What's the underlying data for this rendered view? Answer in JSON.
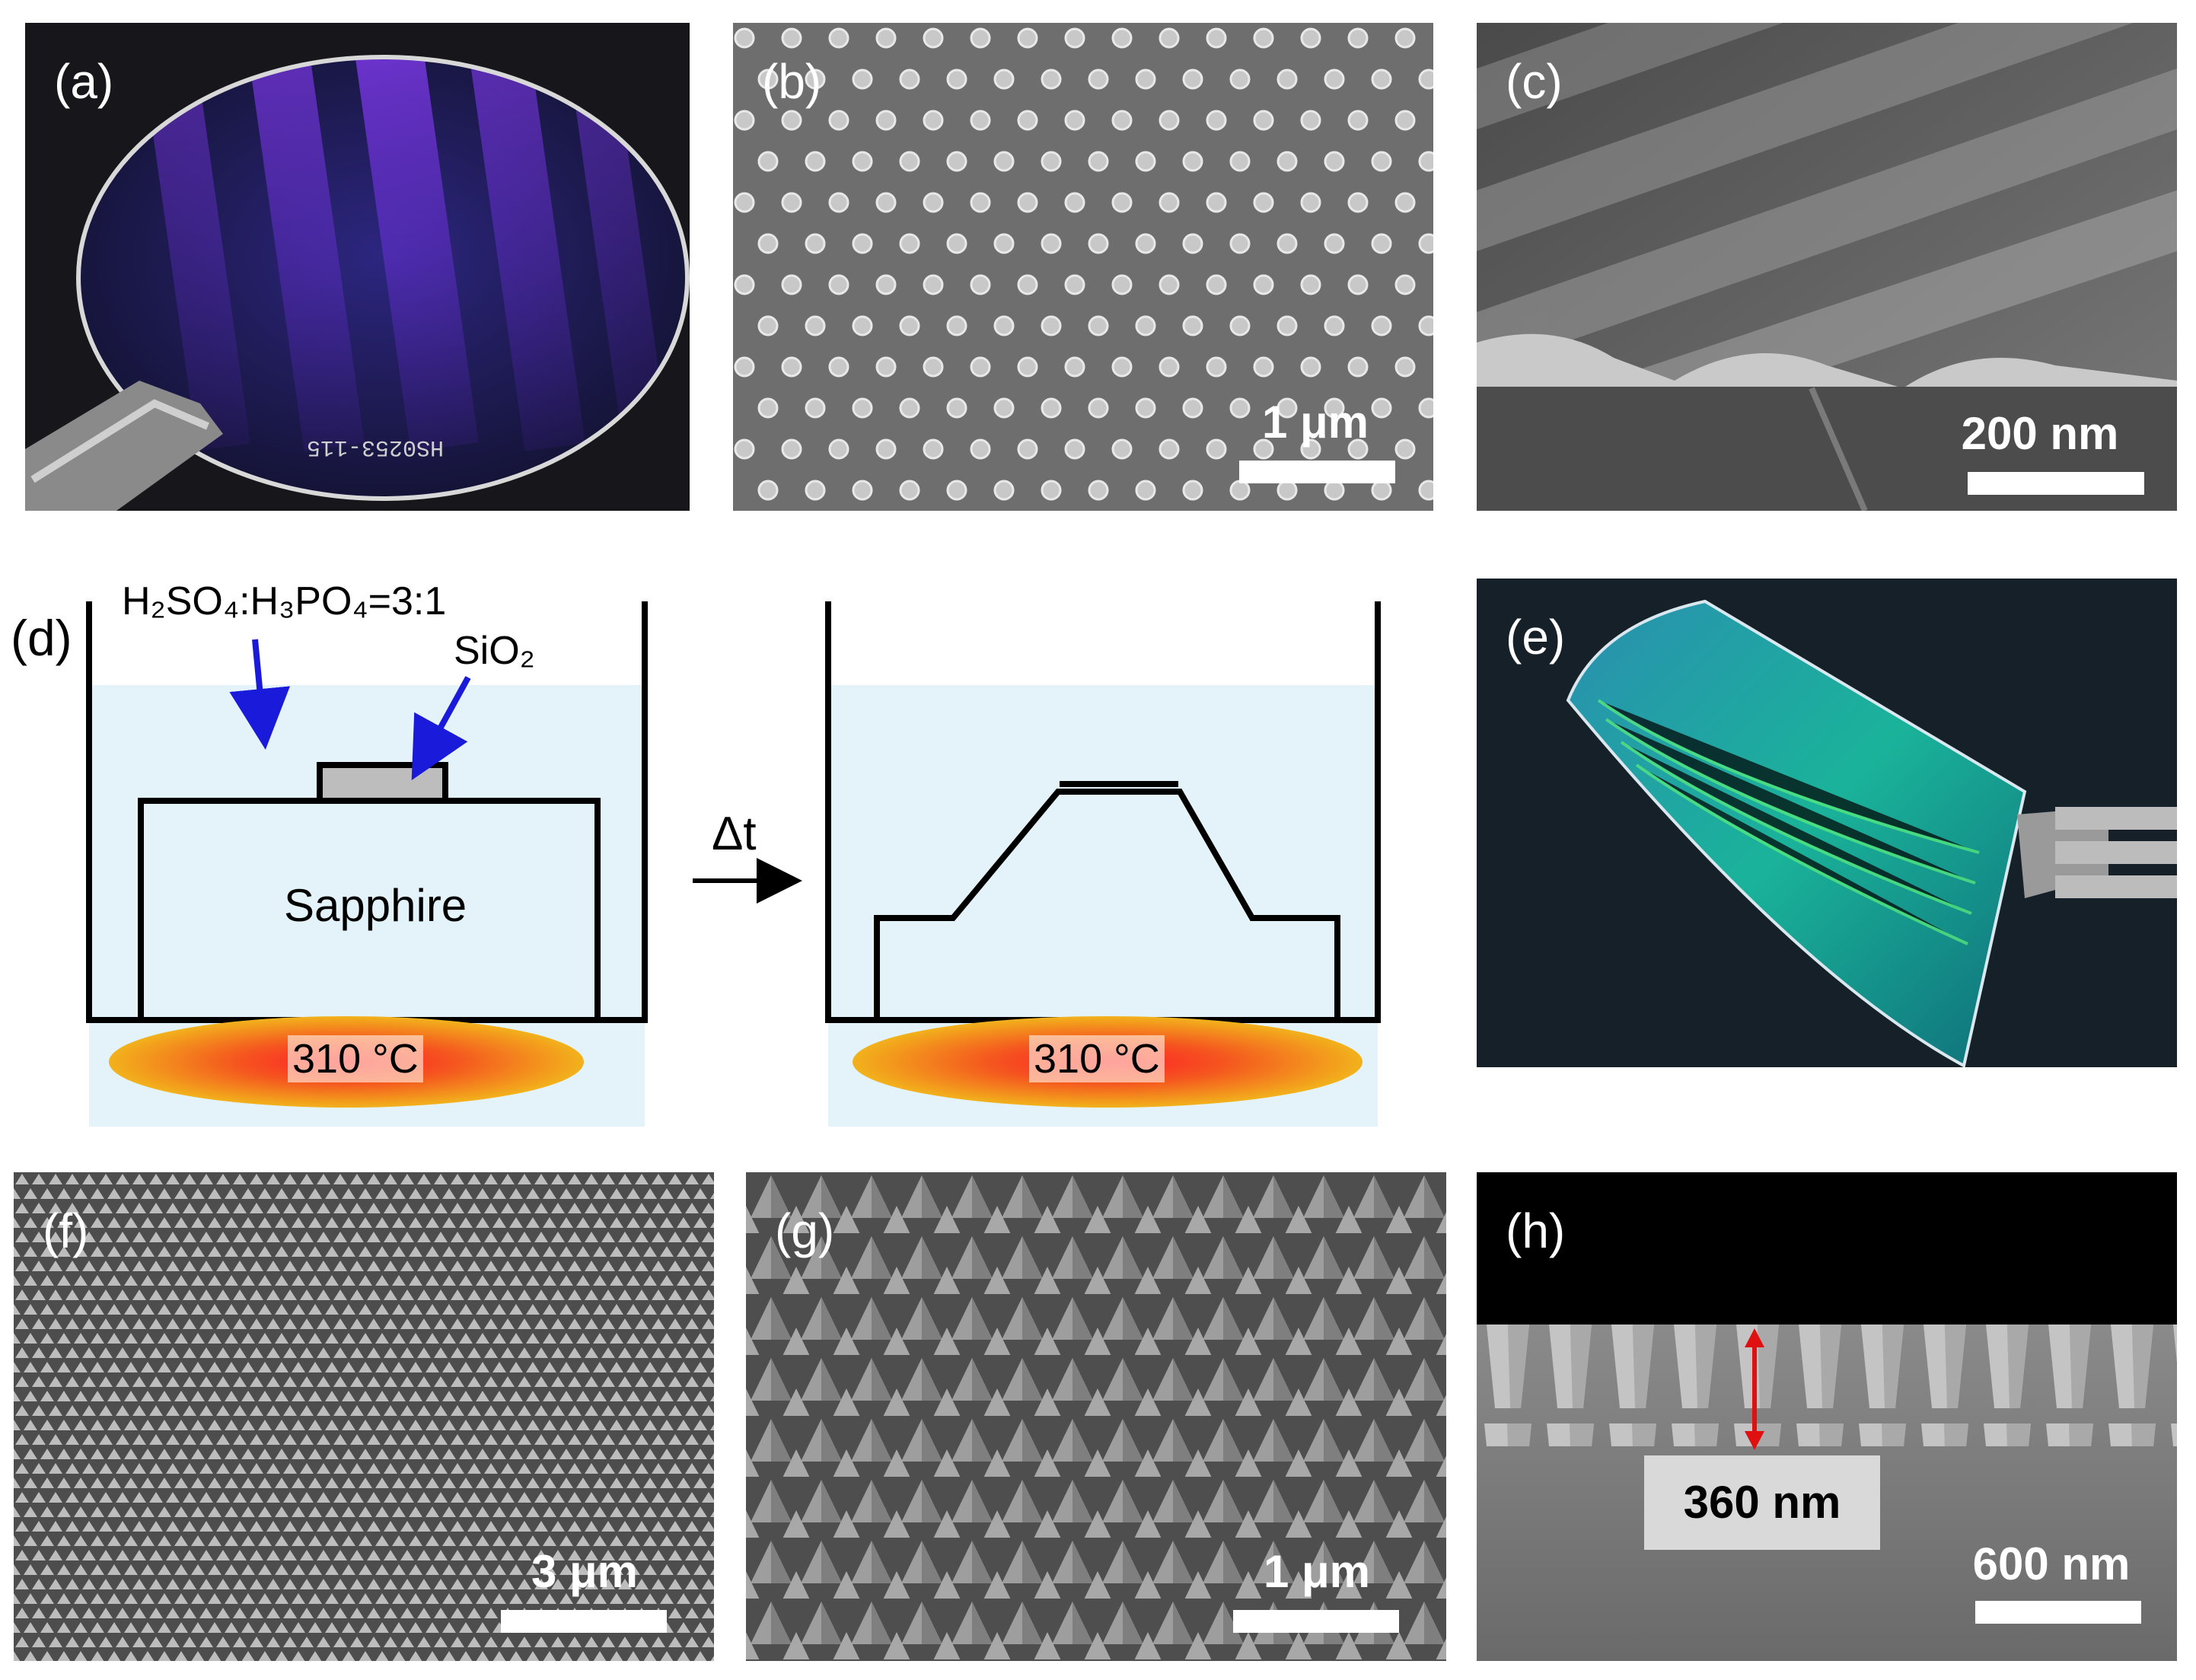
{
  "panels": {
    "a": {
      "label": "(a)",
      "engraving": "HS0253-115",
      "colors": {
        "wafer": "#2a1f78",
        "glow": "#7b3cff"
      }
    },
    "b": {
      "label": "(b)",
      "scale": "1 μm"
    },
    "c": {
      "label": "(c)",
      "scale": "200 nm"
    },
    "d": {
      "label": "(d)",
      "etchant": "H₂SO₄:H₃PO₄=3:1",
      "mask": "SiO₂",
      "substrate": "Sapphire",
      "time_step": "Δt",
      "temp_left": "310 °C",
      "temp_right": "310 °C",
      "colors": {
        "solution": "#e4f3fa",
        "arrow": "#1a1adb",
        "heater": "#f08a1e"
      }
    },
    "e": {
      "label": "(e)",
      "colors": {
        "film": "#1aa8a0"
      }
    },
    "f": {
      "label": "(f)",
      "scale": "3 μm"
    },
    "g": {
      "label": "(g)",
      "scale": "1 μm"
    },
    "h": {
      "label": "(h)",
      "height": "360 nm",
      "scale": "600 nm",
      "colors": {
        "arrow": "#e01010"
      }
    }
  }
}
